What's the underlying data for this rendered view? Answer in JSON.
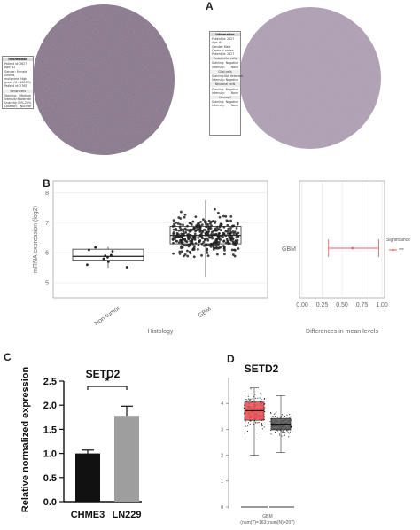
{
  "panels": {
    "a": {
      "letter": "A",
      "tumor_card": {
        "header": "Information",
        "lines": [
          "Patient id: 2627",
          "Age: 62",
          "Gender: Female",
          "Glioma, malignant, High grade (M-94803/3)",
          "Patient id: 2765"
        ],
        "section": "Tumor cells",
        "rows": [
          [
            "Staining:",
            "Medium"
          ],
          [
            "Intensity:",
            "Moderate"
          ],
          [
            "Quantity:",
            "75%-25%"
          ],
          [
            "Location:",
            "Nuclear"
          ]
        ]
      },
      "normal_card": {
        "header": "Information",
        "lines": [
          "Patient id: 2627",
          "Age: 64",
          "Gender: Male",
          "Cerebral cortex",
          "Patient id: 2627"
        ],
        "sections": [
          {
            "title": "Endothelial cells",
            "rows": [
              [
                "Staining:",
                "Negative"
              ],
              [
                "Intensity:",
                "None"
              ]
            ]
          },
          {
            "title": "Glial cells",
            "rows": [
              [
                "Staining:",
                "Not detected"
              ],
              [
                "Intensity:",
                "Negative"
              ]
            ]
          },
          {
            "title": "Neuronal cells",
            "rows": [
              [
                "Staining:",
                "Negative"
              ],
              [
                "Intensity:",
                "None"
              ]
            ]
          },
          {
            "title": "Neuropil",
            "rows": [
              [
                "Staining:",
                "Negative"
              ],
              [
                "Intensity:",
                "None"
              ]
            ]
          }
        ]
      }
    },
    "b": {
      "letter": "B",
      "left": {
        "ylabel": "mRNA expression (log2)",
        "xlabel": "Histology",
        "yticks": [
          "5",
          "6",
          "7",
          "8"
        ],
        "categories": [
          "Non-tumor",
          "GBM"
        ]
      },
      "right": {
        "xlabel": "Differences in mean levels",
        "xticks": [
          "0.00",
          "0.25",
          "0.50",
          "0.75",
          "1.00"
        ],
        "category": "GBM",
        "legend_title": "Significance",
        "legend_item": "***"
      }
    },
    "c": {
      "letter": "C",
      "title": "SETD2",
      "ylabel": "Relative normalized expression",
      "yticks": [
        "0.0",
        "0.5",
        "1.0",
        "1.5",
        "2.0",
        "2.5"
      ],
      "significance": "*"
    },
    "d": {
      "letter": "D",
      "title": "SETD2",
      "yticks": [
        "0",
        "1",
        "2",
        "3",
        "4"
      ],
      "xlabel": "GBM",
      "sub_label": "(num(T)=163; num(N)=207)"
    }
  },
  "colors": {
    "tissue_tumor": "#8a7a8c",
    "tissue_normal": "#a99aae",
    "scatter_point": "#222222",
    "estimate_line": "#e8626a",
    "bar_chme3": "#111111",
    "bar_ln229": "#9e9e9e",
    "box_tumor": "#e8474c",
    "box_normal": "#555555"
  },
  "chart_data": [
    {
      "type": "scatter",
      "panel": "B-left",
      "ylabel": "mRNA expression (log2)",
      "xlabel": "Histology",
      "categories": [
        "Non-tumor",
        "GBM"
      ],
      "ylim": [
        4.5,
        8.4
      ],
      "boxes": [
        {
          "category": "Non-tumor",
          "q1": 5.75,
          "median": 5.88,
          "q3": 6.12,
          "whisker_low": 5.5,
          "whisker_high": 6.2
        },
        {
          "category": "GBM",
          "q1": 6.3,
          "median": 6.58,
          "q3": 6.88,
          "whisker_low": 5.2,
          "whisker_high": 7.75
        }
      ],
      "points": {
        "Non-tumor": [
          5.85,
          5.92,
          6.1,
          6.18,
          5.9,
          5.7,
          5.6,
          5.52,
          6.05,
          5.8
        ],
        "GBM_count": 370
      }
    },
    {
      "type": "scatter",
      "panel": "B-right",
      "xlabel": "Differences in mean levels",
      "categories": [
        "GBM"
      ],
      "xlim": [
        0.0,
        1.0
      ],
      "estimate": 0.63,
      "ci": [
        0.33,
        0.96
      ],
      "legend": "Significance ***"
    },
    {
      "type": "bar",
      "panel": "C",
      "title": "SETD2",
      "ylabel": "Relative normalized expression",
      "categories": [
        "CHME3",
        "LN229"
      ],
      "values": [
        1.0,
        1.78
      ],
      "errors": [
        0.07,
        0.2
      ],
      "ylim": [
        0,
        2.5
      ],
      "annotation": "*"
    },
    {
      "type": "scatter",
      "panel": "D",
      "title": "SETD2",
      "xlabel": "GBM",
      "ylim": [
        0,
        5
      ],
      "boxes": [
        {
          "name": "T",
          "n": 163,
          "q1": 3.35,
          "median": 3.72,
          "q3": 4.05,
          "whisker_low": 2.0,
          "whisker_high": 4.6
        },
        {
          "name": "N",
          "n": 207,
          "q1": 2.98,
          "median": 3.2,
          "q3": 3.42,
          "whisker_low": 2.1,
          "whisker_high": 4.3
        }
      ]
    }
  ]
}
